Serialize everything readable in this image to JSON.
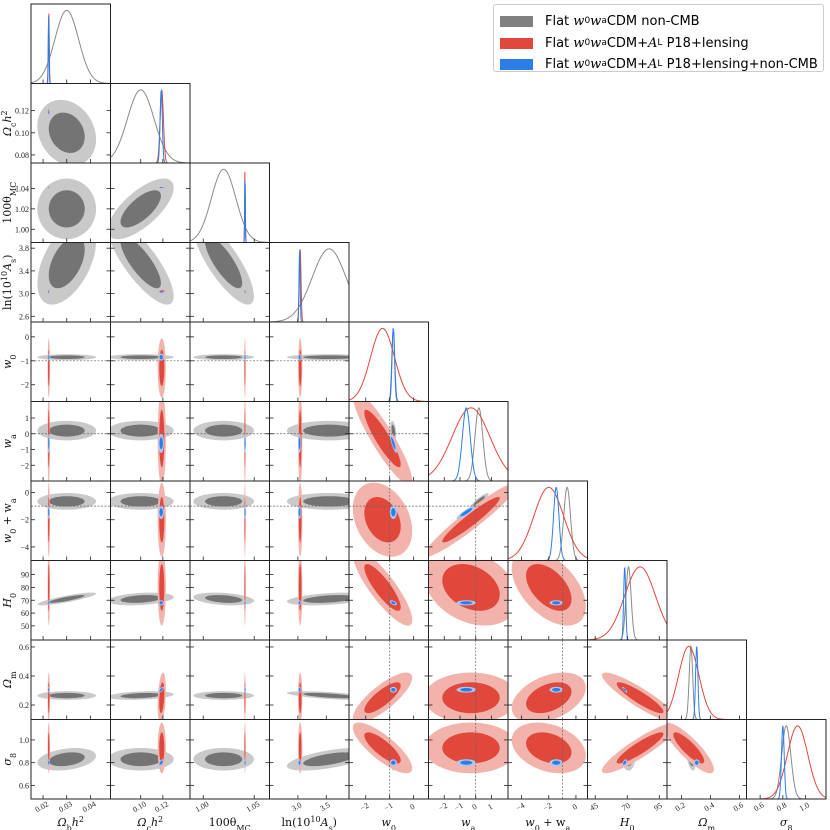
{
  "chart_data": {
    "type": "triangle-corner-plot",
    "params": [
      {
        "label": [
          [
            "Ω",
            ""
          ],
          [
            "b",
            "sub"
          ],
          [
            "h",
            ""
          ],
          [
            "2",
            "sup"
          ]
        ],
        "range": [
          0.0149,
          0.0485
        ],
        "xticks": [
          "0.02",
          "0.03",
          "0.04"
        ],
        "yticks": []
      },
      {
        "label": [
          [
            "Ω",
            ""
          ],
          [
            "c",
            "sub"
          ],
          [
            "h",
            ""
          ],
          [
            "2",
            "sup"
          ]
        ],
        "range": [
          0.0727,
          0.1445
        ],
        "xticks": [
          "0.10",
          "0.12"
        ],
        "yticks": [
          "0.08",
          "0.10",
          "0.12"
        ]
      },
      {
        "label": [
          [
            "100θ",
            ""
          ],
          [
            "MC",
            "sub"
          ]
        ],
        "range": [
          0.987,
          1.065
        ],
        "xticks": [
          "1.00",
          "1.05"
        ],
        "yticks": [
          "1.00",
          "1.02",
          "1.04"
        ]
      },
      {
        "label": [
          [
            "ln(10",
            ""
          ],
          [
            "10",
            "sup"
          ],
          [
            "A",
            ""
          ],
          [
            "s",
            "sub"
          ],
          [
            ")",
            ""
          ]
        ],
        "range": [
          2.5,
          3.9
        ],
        "xticks": [
          "3.0",
          "3.5"
        ],
        "yticks": [
          "2.6",
          "3.0",
          "3.4",
          "3.8"
        ]
      },
      {
        "label": [
          [
            "w",
            ""
          ],
          [
            "0",
            "sub"
          ]
        ],
        "range": [
          -2.7,
          0.62
        ],
        "xticks": [
          "−2",
          "−1",
          "0"
        ],
        "yticks": [
          "−2",
          "−1",
          "0"
        ]
      },
      {
        "label": [
          [
            "w",
            ""
          ],
          [
            "a",
            "sub"
          ]
        ],
        "range": [
          -3.0,
          2.05
        ],
        "xticks": [
          "−2",
          "−1",
          "0",
          "1"
        ],
        "yticks": [
          "−2",
          "−1",
          "0",
          "1"
        ]
      },
      {
        "label": [
          [
            "w",
            ""
          ],
          [
            "0",
            "sub"
          ],
          [
            " + w",
            ""
          ],
          [
            "a",
            "sub"
          ]
        ],
        "range": [
          -5.0,
          0.85
        ],
        "xticks": [
          "−4",
          "−2",
          "0"
        ],
        "yticks": [
          "−4",
          "−2",
          "0"
        ]
      },
      {
        "label": [
          [
            "H",
            ""
          ],
          [
            "0",
            "sub"
          ]
        ],
        "range": [
          39,
          101
        ],
        "xticks": [
          "45",
          "70",
          "95"
        ],
        "yticks": [
          "50",
          "60",
          "70",
          "80",
          "90"
        ]
      },
      {
        "label": [
          [
            "Ω",
            ""
          ],
          [
            "m",
            "sub"
          ]
        ],
        "range": [
          0.1,
          0.648
        ],
        "xticks": [
          "0.2",
          "0.4",
          "0.6"
        ],
        "yticks": [
          "0.2",
          "0.4",
          "0.6"
        ]
      },
      {
        "label": [
          [
            "σ",
            ""
          ],
          [
            "8",
            "sub"
          ]
        ],
        "range": [
          0.48,
          1.18
        ],
        "xticks": [
          "0.6",
          "0.8",
          "1.0"
        ],
        "yticks": [
          "0.6",
          "0.8",
          "1.0"
        ]
      }
    ],
    "reference_lines": [
      {
        "param": 4,
        "value": -1
      },
      {
        "param": 5,
        "value": 0
      },
      {
        "param": 6,
        "value": -1
      }
    ],
    "series": [
      {
        "legend": "non-CMB",
        "colors": {
          "line": "#8a8a8a",
          "inner": "#747474",
          "outer": "#c9c9c9"
        },
        "mean": [
          0.03,
          0.1,
          1.02,
          3.55,
          -0.85,
          0.2,
          -0.65,
          71,
          0.265,
          0.83
        ],
        "sigma": [
          0.005,
          0.012,
          0.012,
          0.3,
          0.05,
          0.25,
          0.25,
          2.0,
          0.012,
          0.04
        ],
        "corr": [
          [
            0,
            1,
            -0.2
          ],
          [
            1,
            2,
            0.7
          ],
          [
            1,
            3,
            -0.8
          ],
          [
            2,
            3,
            -0.8
          ],
          [
            0,
            3,
            0.5
          ],
          [
            0,
            7,
            0.85
          ],
          [
            3,
            9,
            0.6
          ],
          [
            3,
            8,
            -0.6
          ],
          [
            1,
            8,
            0.3
          ],
          [
            4,
            5,
            -0.4
          ],
          [
            5,
            6,
            0.9
          ],
          [
            7,
            8,
            -0.3
          ],
          [
            8,
            9,
            -0.5
          ],
          [
            0,
            9,
            0.3
          ],
          [
            3,
            7,
            0.4
          ],
          [
            1,
            7,
            0.3
          ],
          [
            2,
            7,
            -0.3
          ],
          [
            5,
            7,
            0.3
          ],
          [
            6,
            7,
            0.4
          ]
        ]
      },
      {
        "legend": "P18+lensing",
        "colors": {
          "line": "#e0483c",
          "inner": "#e0483c",
          "outer": "#f2b3ad"
        },
        "mean": [
          0.0224,
          0.119,
          1.0409,
          3.04,
          -1.3,
          -0.3,
          -2.0,
          80,
          0.25,
          0.93
        ],
        "sigma": [
          0.0002,
          0.0015,
          0.0003,
          0.015,
          0.5,
          1.2,
          1.1,
          12,
          0.07,
          0.09
        ],
        "corr": [
          [
            4,
            5,
            -0.9
          ],
          [
            4,
            6,
            -0.3
          ],
          [
            5,
            6,
            0.95
          ],
          [
            4,
            7,
            -0.85
          ],
          [
            5,
            7,
            -0.3
          ],
          [
            6,
            7,
            -0.5
          ],
          [
            7,
            8,
            -0.9
          ],
          [
            7,
            9,
            0.9
          ],
          [
            8,
            9,
            -0.85
          ],
          [
            4,
            8,
            0.8
          ],
          [
            4,
            9,
            -0.8
          ],
          [
            6,
            8,
            0.4
          ],
          [
            6,
            9,
            -0.3
          ],
          [
            1,
            8,
            0.3
          ]
        ]
      },
      {
        "legend": "P18+lensing+non-CMB",
        "colors": {
          "line": "#2b7ee8",
          "inner": "#2b7ee8",
          "outer": "#a9c9f5"
        },
        "mean": [
          0.0224,
          0.1185,
          1.041,
          3.03,
          -0.85,
          -0.6,
          -1.45,
          68,
          0.305,
          0.8
        ],
        "sigma": [
          0.00015,
          0.001,
          0.0003,
          0.01,
          0.06,
          0.25,
          0.2,
          0.8,
          0.008,
          0.012
        ],
        "corr": [
          [
            4,
            5,
            -0.85
          ],
          [
            4,
            7,
            -0.5
          ],
          [
            7,
            8,
            -0.8
          ],
          [
            7,
            9,
            0.5
          ],
          [
            5,
            6,
            0.9
          ],
          [
            1,
            8,
            0.7
          ],
          [
            1,
            9,
            0.6
          ],
          [
            1,
            3,
            -0.5
          ]
        ]
      }
    ],
    "contour_levels": [
      "68%",
      "95%"
    ]
  },
  "legend": {
    "items": [
      {
        "pre": "Flat ",
        "model": "w",
        "sub1": "0",
        "mid": "w",
        "sub2": "a",
        "post": "CDM non-CMB",
        "color": "#808080"
      },
      {
        "pre": "Flat ",
        "model": "w",
        "sub1": "0",
        "mid": "w",
        "sub2": "a",
        "post": "CDM+",
        "al": "A",
        "alsub": "L",
        "tail": " P18+lensing",
        "color": "#e0483c"
      },
      {
        "pre": "Flat ",
        "model": "w",
        "sub1": "0",
        "mid": "w",
        "sub2": "a",
        "post": "CDM+",
        "al": "A",
        "alsub": "L",
        "tail": " P18+lensing+non-CMB",
        "color": "#2b7ee8"
      }
    ]
  }
}
